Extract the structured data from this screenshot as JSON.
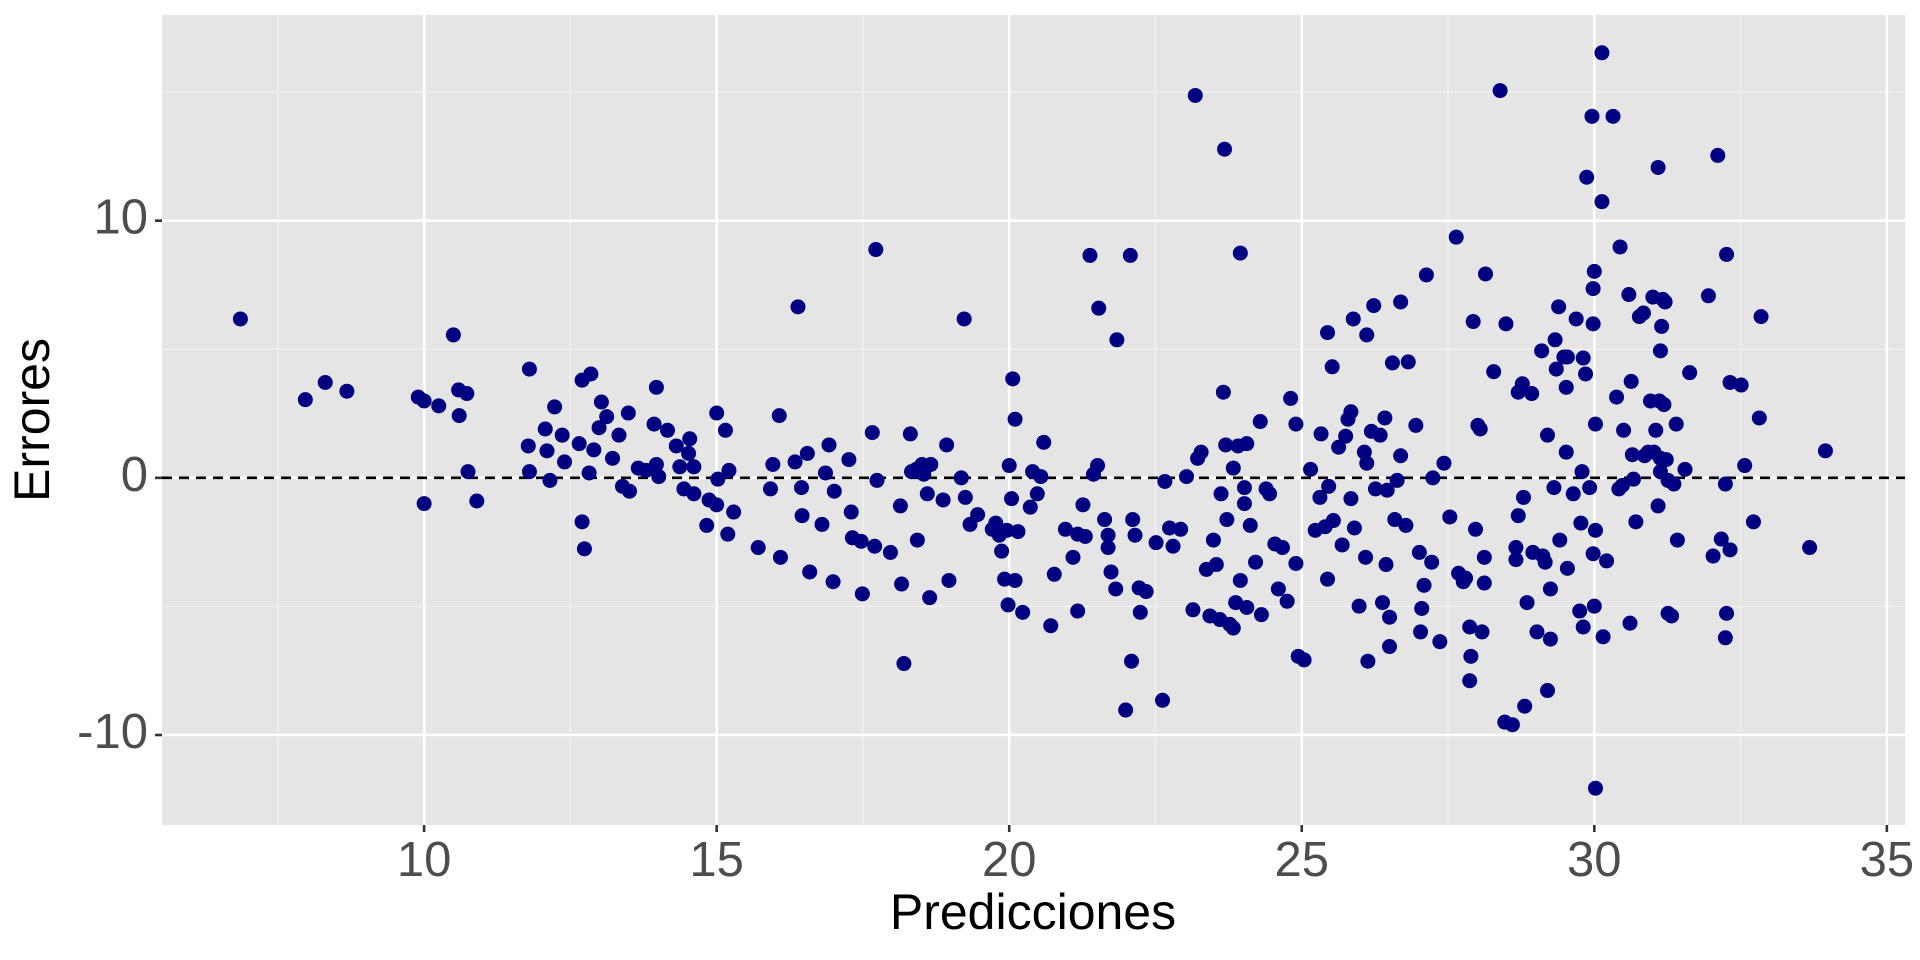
{
  "chart_data": {
    "type": "scatter",
    "xlabel": "Predicciones",
    "ylabel": "Errores",
    "color": "#000080",
    "grid": true,
    "hline": 0,
    "xlim": [
      5.52,
      35.31
    ],
    "ylim": [
      -13.5,
      18
    ],
    "xticks": [
      10,
      15,
      20,
      25,
      30,
      35
    ],
    "yticks": [
      -10,
      0,
      10
    ],
    "x": [
      6.86,
      7.97,
      8.31,
      8.68,
      9.9,
      10.0,
      10.0,
      10.25,
      10.5,
      10.59,
      10.6,
      10.73,
      10.75,
      10.9,
      11.8,
      11.78,
      11.8,
      12.07,
      12.1,
      12.15,
      12.23,
      12.36,
      12.4,
      12.65,
      12.7,
      12.7,
      12.74,
      12.85,
      12.82,
      12.9,
      12.99,
      13.03,
      13.12,
      13.22,
      13.33,
      13.39,
      13.49,
      13.51,
      13.66,
      13.79,
      13.93,
      13.97,
      13.97,
      14.01,
      14.16,
      14.31,
      14.37,
      14.44,
      14.54,
      14.52,
      14.61,
      14.61,
      14.83,
      14.87,
      15.0,
      15.0,
      15.02,
      15.15,
      15.21,
      15.19,
      15.29,
      15.71,
      15.96,
      15.92,
      16.07,
      16.09,
      16.34,
      16.39,
      16.45,
      16.46,
      16.55,
      16.59,
      16.8,
      16.86,
      16.92,
      17.01,
      16.99,
      17.26,
      17.3,
      17.32,
      17.47,
      17.49,
      17.66,
      17.72,
      17.7,
      17.74,
      17.97,
      18.14,
      18.16,
      18.2,
      18.31,
      18.33,
      18.41,
      18.43,
      18.51,
      18.54,
      18.6,
      18.64,
      18.66,
      18.87,
      18.93,
      18.97,
      19.18,
      19.23,
      19.25,
      19.33,
      19.46,
      19.71,
      19.77,
      19.83,
      19.87,
      19.92,
      19.96,
      19.98,
      20.0,
      20.04,
      20.06,
      20.1,
      20.1,
      20.15,
      20.23,
      20.36,
      20.4,
      20.48,
      20.54,
      20.59,
      20.71,
      20.77,
      20.96,
      21.09,
      21.17,
      21.17,
      21.26,
      21.3,
      21.38,
      21.44,
      21.51,
      21.53,
      21.63,
      21.69,
      21.69,
      21.74,
      21.82,
      21.84,
      21.99,
      22.07,
      22.09,
      22.11,
      22.15,
      22.22,
      22.24,
      22.34,
      22.51,
      22.62,
      22.66,
      22.74,
      22.8,
      22.93,
      23.03,
      23.14,
      23.18,
      23.22,
      23.28,
      23.37,
      23.43,
      23.49,
      23.54,
      23.6,
      23.62,
      23.66,
      23.68,
      23.7,
      23.72,
      23.77,
      23.83,
      23.83,
      23.87,
      23.91,
      23.95,
      23.95,
      24.02,
      24.06,
      24.02,
      24.06,
      24.12,
      24.21,
      24.29,
      24.31,
      24.39,
      24.45,
      24.54,
      24.6,
      24.67,
      24.75,
      24.81,
      24.9,
      24.9,
      24.94,
      25.04,
      25.15,
      25.23,
      25.31,
      25.33,
      25.4,
      25.44,
      25.44,
      25.46,
      25.52,
      25.54,
      25.63,
      25.69,
      25.75,
      25.79,
      25.84,
      25.84,
      25.88,
      25.9,
      25.98,
      26.07,
      26.11,
      26.11,
      26.09,
      26.13,
      26.19,
      26.23,
      26.26,
      26.34,
      26.38,
      26.42,
      26.44,
      26.46,
      26.5,
      26.5,
      26.55,
      26.59,
      26.63,
      26.69,
      26.69,
      26.78,
      26.82,
      26.95,
      27.01,
      27.03,
      27.05,
      27.09,
      27.13,
      27.22,
      27.24,
      27.36,
      27.43,
      27.53,
      27.64,
      27.68,
      27.76,
      27.8,
      27.87,
      27.87,
      27.89,
      27.93,
      27.97,
      28.01,
      28.05,
      28.08,
      28.12,
      28.12,
      28.14,
      28.28,
      28.39,
      28.47,
      28.49,
      28.6,
      28.66,
      28.66,
      28.7,
      28.7,
      28.77,
      28.79,
      28.81,
      28.85,
      28.93,
      28.95,
      29.02,
      29.1,
      29.12,
      29.16,
      29.2,
      29.25,
      29.2,
      29.25,
      29.31,
      29.33,
      29.35,
      29.39,
      29.41,
      29.48,
      29.52,
      29.54,
      29.54,
      29.52,
      29.64,
      29.69,
      29.75,
      29.79,
      29.77,
      29.81,
      29.81,
      29.85,
      29.87,
      29.92,
      29.96,
      29.98,
      29.98,
      30.0,
      29.98,
      30.0,
      30.02,
      30.02,
      30.02,
      30.13,
      30.13,
      30.15,
      30.21,
      30.32,
      30.38,
      30.42,
      30.44,
      30.48,
      30.5,
      30.59,
      30.61,
      30.63,
      30.65,
      30.67,
      30.71,
      30.77,
      30.84,
      30.86,
      30.92,
      30.96,
      31.0,
      31.02,
      31.05,
      31.09,
      31.09,
      31.11,
      31.13,
      31.13,
      31.13,
      31.15,
      31.17,
      31.19,
      31.21,
      31.23,
      31.26,
      31.26,
      31.32,
      31.36,
      31.4,
      31.42,
      31.55,
      31.63,
      31.95,
      32.03,
      32.11,
      32.17,
      32.24,
      32.26,
      32.24,
      32.26,
      32.32,
      32.32,
      32.51,
      32.57,
      32.72,
      32.85,
      32.82,
      33.68,
      33.95
    ],
    "values": [
      6.18,
      3.04,
      3.71,
      3.37,
      3.14,
      2.99,
      -1.0,
      2.8,
      5.56,
      3.42,
      2.42,
      3.28,
      0.24,
      -0.9,
      4.23,
      1.24,
      0.24,
      1.9,
      1.05,
      -0.1,
      2.76,
      1.66,
      0.62,
      1.33,
      3.8,
      -1.71,
      -2.76,
      4.04,
      0.19,
      1.09,
      1.95,
      2.95,
      2.38,
      0.76,
      1.66,
      -0.33,
      2.52,
      -0.52,
      0.38,
      0.29,
      2.09,
      3.52,
      0.52,
      0.05,
      1.85,
      1.24,
      0.43,
      -0.43,
      1.52,
      0.95,
      0.43,
      -0.62,
      -1.85,
      -0.86,
      2.52,
      -1.05,
      -0.05,
      1.85,
      0.29,
      -2.19,
      -1.33,
      -2.71,
      0.52,
      -0.43,
      2.42,
      -3.09,
      0.62,
      6.65,
      -0.38,
      -1.47,
      0.95,
      -3.66,
      -1.81,
      0.19,
      1.28,
      -0.52,
      -4.04,
      0.71,
      -1.33,
      -2.33,
      -2.47,
      -4.51,
      1.76,
      8.88,
      -2.66,
      -0.1,
      -2.9,
      -1.09,
      -4.13,
      -7.22,
      1.71,
      0.24,
      0.33,
      -2.42,
      0.52,
      0.14,
      -0.62,
      -4.66,
      0.52,
      -0.86,
      1.28,
      -3.99,
      0,
      6.18,
      -0.76,
      -1.81,
      -1.43,
      -2.0,
      -1.76,
      -2.23,
      -2.85,
      -3.94,
      -2.04,
      -4.94,
      0.48,
      -0.81,
      3.85,
      2.28,
      -3.99,
      -2.09,
      -5.23,
      -1.14,
      0.24,
      -0.62,
      0.05,
      1.38,
      -5.75,
      -3.75,
      -2.0,
      -3.09,
      -5.18,
      -2.19,
      -1.05,
      -2.28,
      8.65,
      0.14,
      0.48,
      6.6,
      -1.62,
      -2.23,
      -2.71,
      -3.66,
      -4.32,
      5.37,
      -9.03,
      8.65,
      -7.13,
      -1.62,
      -2.23,
      -4.28,
      -5.23,
      -4.42,
      -2.52,
      -8.65,
      -0.14,
      -1.95,
      -2.66,
      -2.0,
      0.05,
      -5.13,
      14.87,
      0.76,
      1.0,
      -3.56,
      -5.37,
      -2.42,
      -3.37,
      -5.51,
      -0.62,
      3.33,
      12.78,
      1.28,
      -1.62,
      -5.7,
      0.38,
      -5.84,
      -4.85,
      1.24,
      8.74,
      -3.99,
      -0.38,
      1.33,
      -1.0,
      -5.04,
      -1.85,
      -3.28,
      2.19,
      -5.32,
      -0.43,
      -0.62,
      -2.57,
      -4.32,
      -2.71,
      -4.8,
      3.09,
      2.09,
      -3.33,
      -6.94,
      -7.08,
      0.33,
      -2.04,
      -0.76,
      1.71,
      -1.9,
      5.65,
      -3.94,
      -0.33,
      4.32,
      -1.66,
      1.19,
      -2.61,
      1.62,
      2.28,
      2.57,
      -0.81,
      6.18,
      -1.95,
      -4.99,
      1.0,
      5.56,
      0.57,
      -3.09,
      -7.13,
      1.81,
      6.7,
      -0.43,
      1.66,
      -4.85,
      2.33,
      -3.37,
      -0.48,
      -5.42,
      -6.56,
      4.47,
      -1.62,
      -0.1,
      0.86,
      6.84,
      -1.85,
      4.51,
      2.04,
      -2.9,
      -5.99,
      -5.08,
      -4.18,
      7.89,
      -3.28,
      0,
      -6.37,
      0.57,
      -1.52,
      9.36,
      -3.71,
      -4.04,
      -3.9,
      -7.89,
      -5.8,
      -6.94,
      6.08,
      -2.0,
      2.04,
      1.9,
      -5.99,
      -4.09,
      -3.09,
      7.93,
      4.13,
      15.06,
      -9.5,
      5.99,
      -9.6,
      -2.71,
      -3.18,
      3.33,
      -1.47,
      3.66,
      -0.76,
      -8.88,
      -4.85,
      3.28,
      -2.9,
      -5.99,
      4.94,
      -3.04,
      -3.28,
      1.66,
      -4.32,
      -8.27,
      -6.27,
      -0.38,
      5.37,
      4.23,
      6.65,
      -2.42,
      4.7,
      1.0,
      -3.52,
      4.7,
      3.52,
      -0.62,
      6.18,
      -5.18,
      0.24,
      -1.76,
      -5.8,
      4.66,
      4.04,
      11.69,
      -0.38,
      14.06,
      5.99,
      7.36,
      8.03,
      -2.95,
      -4.99,
      -12.07,
      2.09,
      -2.04,
      16.53,
      10.74,
      -6.18,
      -3.23,
      14.06,
      3.14,
      -0.43,
      8.98,
      -0.29,
      1.85,
      7.13,
      -5.65,
      3.75,
      0.9,
      -0.05,
      -1.71,
      6.27,
      6.41,
      0.86,
      1.0,
      2.99,
      7.03,
      1.0,
      1.85,
      12.07,
      -1.09,
      2.99,
      4.94,
      0.76,
      0.24,
      5.89,
      6.94,
      2.85,
      6.84,
      0.71,
      -0.1,
      -5.27,
      -5.37,
      -0.24,
      2.09,
      -2.42,
      0.33,
      4.09,
      7.08,
      -3.04,
      12.54,
      -2.38,
      -0.24,
      -5.27,
      -6.22,
      8.69,
      3.71,
      -2.8,
      3.61,
      0.48,
      -1.71,
      6.27,
      2.33,
      -2.71,
      1.05
    ]
  }
}
